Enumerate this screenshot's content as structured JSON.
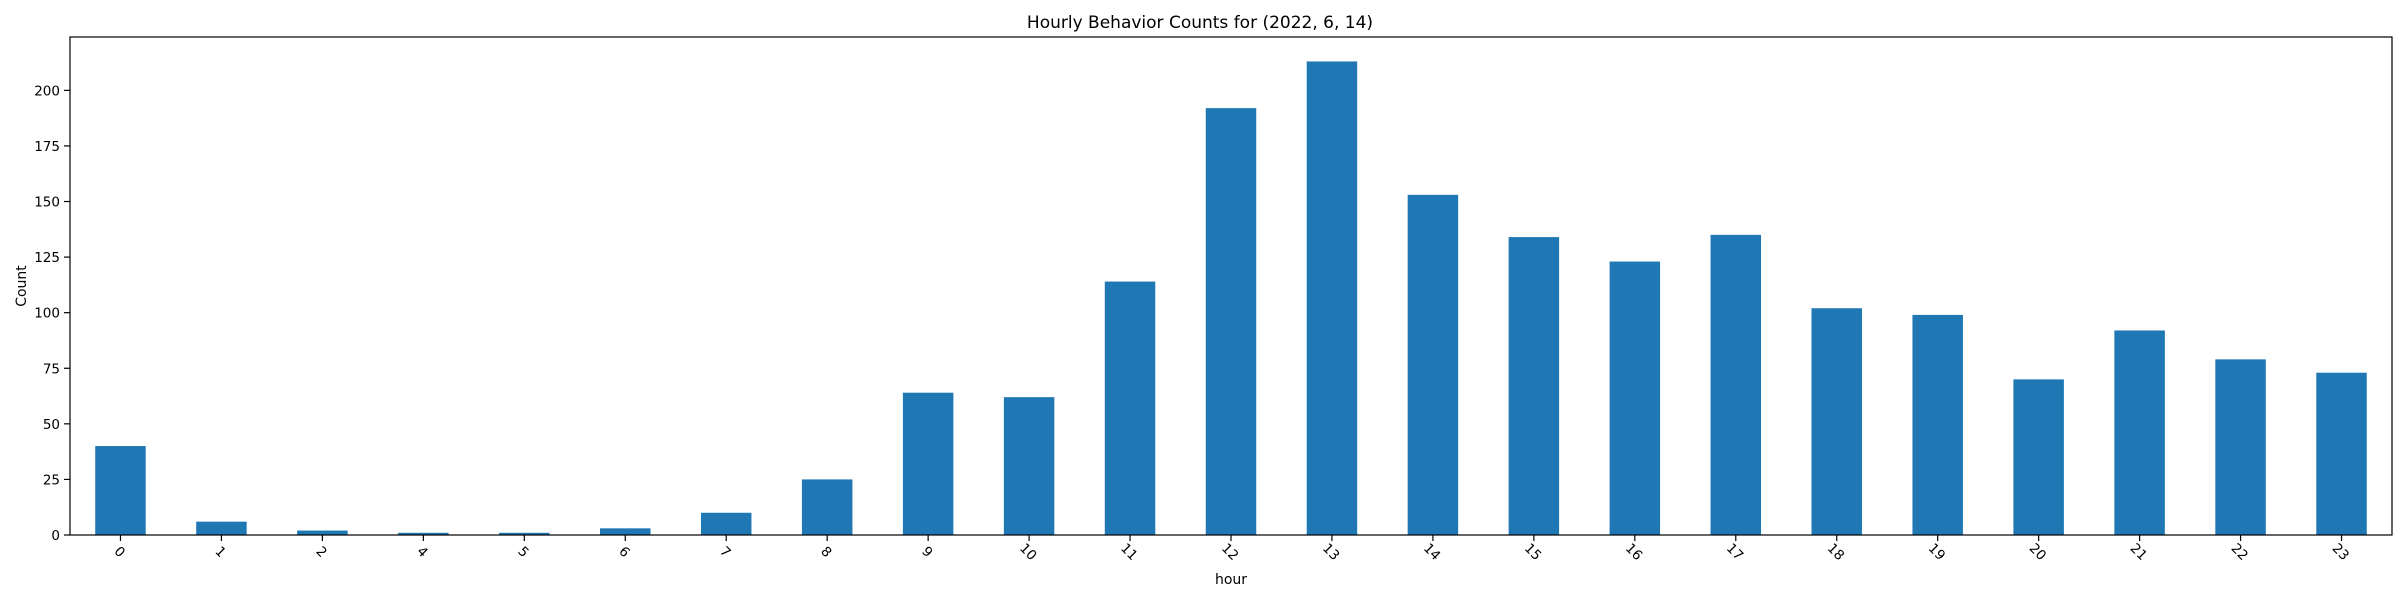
{
  "chart_data": {
    "type": "bar",
    "title": "Hourly Behavior Counts for (2022, 6, 14)",
    "xlabel": "hour",
    "ylabel": "Count",
    "categories": [
      "0",
      "1",
      "2",
      "4",
      "5",
      "6",
      "7",
      "8",
      "9",
      "10",
      "11",
      "12",
      "13",
      "14",
      "15",
      "16",
      "17",
      "18",
      "19",
      "20",
      "21",
      "22",
      "23"
    ],
    "values": [
      40,
      6,
      2,
      1,
      1,
      3,
      10,
      25,
      64,
      62,
      114,
      192,
      213,
      153,
      134,
      123,
      135,
      102,
      99,
      70,
      92,
      79,
      73
    ],
    "ylim": [
      0,
      224
    ],
    "yticks": [
      0,
      25,
      50,
      75,
      100,
      125,
      150,
      175,
      200
    ],
    "xtick_rotation": 45,
    "grid": false,
    "legend": "none",
    "colors": {
      "bar": "#1f77b4"
    }
  }
}
